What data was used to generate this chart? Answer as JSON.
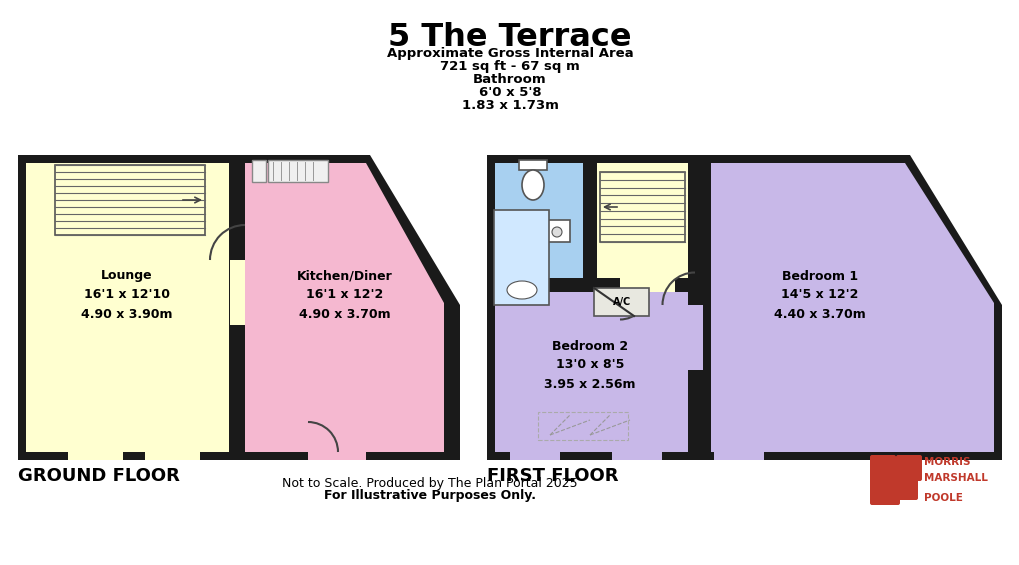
{
  "title": "5 The Terrace",
  "subtitle1": "Approximate Gross Internal Area",
  "subtitle2": "721 sq ft - 67 sq m",
  "subtitle3": "Bathroom",
  "subtitle4": "6'0 x 5'8",
  "subtitle5": "1.83 x 1.73m",
  "ground_floor_label": "GROUND FLOOR",
  "first_floor_label": "FIRST FLOOR",
  "footer1": "Not to Scale. Produced by The Plan Portal 2025",
  "footer2": "For Illustrative Purposes Only.",
  "bg_color": "#ffffff",
  "wall_color": "#1a1a1a",
  "lounge_color": "#ffffd0",
  "kitchen_color": "#f5b8d0",
  "bedroom1_color": "#c8b8e8",
  "bedroom2_color": "#c8b8e8",
  "bathroom_color": "#a8d0f0",
  "landing_color": "#ffffd0",
  "morris_color": "#c0392b"
}
